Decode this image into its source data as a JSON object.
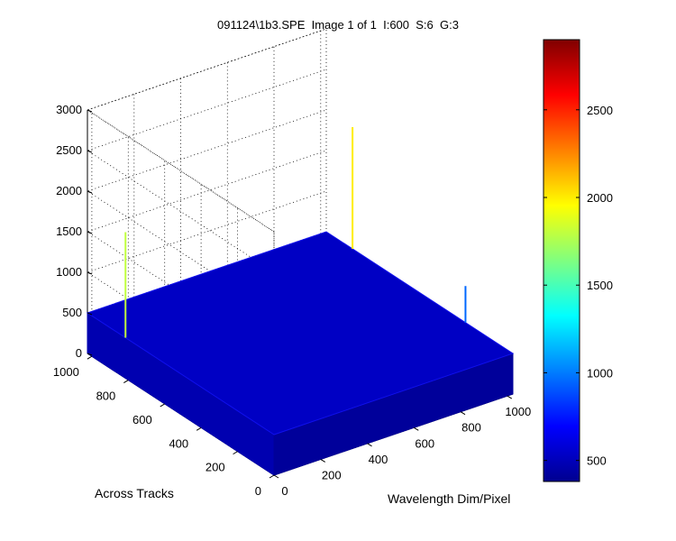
{
  "chart_data": {
    "type": "surface",
    "title": "091124\\1b3.SPE  Image 1 of 1  I:600  S:6  G:3",
    "xlabel": "Wavelength Dim/Pixel",
    "ylabel": "Across Tracks",
    "zlabel": "",
    "xlim": [
      0,
      1024
    ],
    "ylim": [
      0,
      1024
    ],
    "zlim": [
      0,
      3000
    ],
    "x_ticks": [
      0,
      200,
      400,
      600,
      800,
      1000
    ],
    "y_ticks": [
      0,
      200,
      400,
      600,
      800,
      1000
    ],
    "z_ticks": [
      0,
      500,
      1000,
      1500,
      2000,
      2500,
      3000
    ],
    "grid": true,
    "baseline_level": 500,
    "peaks": [
      {
        "x": 0,
        "y": 815,
        "z": 1800
      },
      {
        "x": 1024,
        "y": 880,
        "z": 2000
      },
      {
        "x": 1024,
        "y": 260,
        "z": 950
      }
    ],
    "colorbar": {
      "range": [
        380,
        2900
      ],
      "ticks": [
        500,
        1000,
        1500,
        2000,
        2500
      ],
      "colormap": "jet"
    }
  }
}
